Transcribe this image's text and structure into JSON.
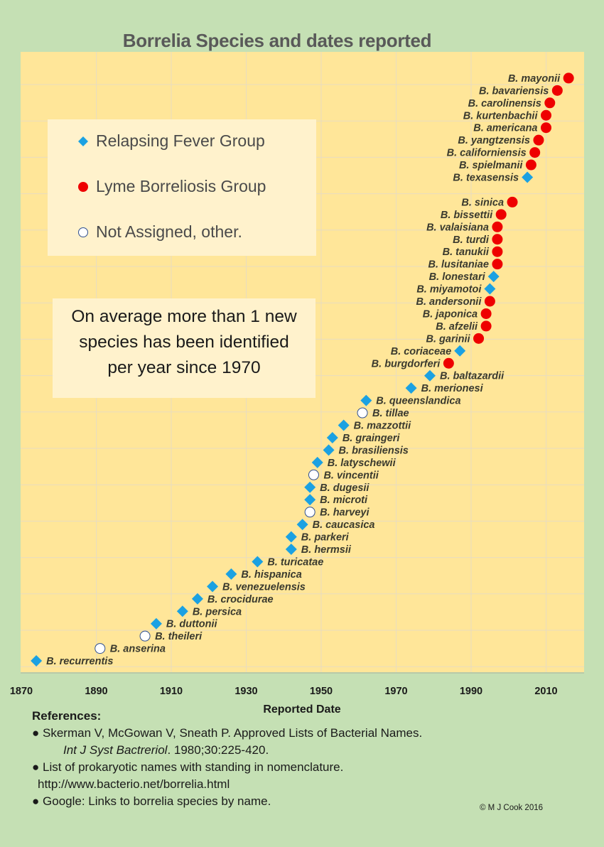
{
  "chart_data": {
    "type": "scatter",
    "title": "Borrelia Species and dates reported",
    "xlabel": "Reported Date",
    "ylabel": "",
    "xlim": [
      1870,
      2020
    ],
    "x_ticks": [
      1870,
      1890,
      1910,
      1930,
      1950,
      1970,
      1990,
      2010
    ],
    "grid": true,
    "colors": {
      "relapsing": "#1ba1e2",
      "lyme": "#ee0000",
      "other_fill": "#ffffff",
      "other_stroke": "#2f4f8f",
      "plot_bg": "#ffe699",
      "page_bg": "#c5e0b4",
      "box_bg": "#fff2cc"
    },
    "legend": {
      "placement": "top-left",
      "entries": [
        {
          "group": "relapsing",
          "label": "Relapsing Fever Group",
          "marker": "diamond"
        },
        {
          "group": "lyme",
          "label": "Lyme Borreliosis Group",
          "marker": "circle"
        },
        {
          "group": "other",
          "label": "Not Assigned, other.",
          "marker": "open-circle"
        }
      ]
    },
    "series": [
      {
        "rank": 1,
        "name": "B. recurrentis",
        "year": 1874,
        "group": "relapsing"
      },
      {
        "rank": 2,
        "name": "B. anserina",
        "year": 1891,
        "group": "other"
      },
      {
        "rank": 3,
        "name": "B. theileri",
        "year": 1903,
        "group": "other"
      },
      {
        "rank": 4,
        "name": "B. duttonii",
        "year": 1906,
        "group": "relapsing"
      },
      {
        "rank": 5,
        "name": "B. persica",
        "year": 1913,
        "group": "relapsing"
      },
      {
        "rank": 6,
        "name": "B. crocidurae",
        "year": 1917,
        "group": "relapsing"
      },
      {
        "rank": 7,
        "name": "B. venezuelensis",
        "year": 1921,
        "group": "relapsing"
      },
      {
        "rank": 8,
        "name": "B. hispanica",
        "year": 1926,
        "group": "relapsing"
      },
      {
        "rank": 9,
        "name": "B. turicatae",
        "year": 1933,
        "group": "relapsing"
      },
      {
        "rank": 10,
        "name": "B. hermsii",
        "year": 1942,
        "group": "relapsing"
      },
      {
        "rank": 11,
        "name": "B. parkeri",
        "year": 1942,
        "group": "relapsing"
      },
      {
        "rank": 12,
        "name": "B. caucasica",
        "year": 1945,
        "group": "relapsing"
      },
      {
        "rank": 13,
        "name": "B. harveyi",
        "year": 1947,
        "group": "other"
      },
      {
        "rank": 14,
        "name": "B. microti",
        "year": 1947,
        "group": "relapsing"
      },
      {
        "rank": 15,
        "name": "B. dugesii",
        "year": 1947,
        "group": "relapsing"
      },
      {
        "rank": 16,
        "name": "B. vincentii",
        "year": 1948,
        "group": "other"
      },
      {
        "rank": 17,
        "name": "B. latyschewii",
        "year": 1949,
        "group": "relapsing"
      },
      {
        "rank": 18,
        "name": "B. brasiliensis",
        "year": 1952,
        "group": "relapsing"
      },
      {
        "rank": 19,
        "name": "B. graingeri",
        "year": 1953,
        "group": "relapsing"
      },
      {
        "rank": 20,
        "name": "B. mazzottii",
        "year": 1956,
        "group": "relapsing"
      },
      {
        "rank": 21,
        "name": "B. tillae",
        "year": 1961,
        "group": "other"
      },
      {
        "rank": 22,
        "name": "B. queenslandica",
        "year": 1962,
        "group": "relapsing"
      },
      {
        "rank": 23,
        "name": "B. merionesi",
        "year": 1974,
        "group": "relapsing"
      },
      {
        "rank": 24,
        "name": "B. baltazardii",
        "year": 1979,
        "group": "relapsing"
      },
      {
        "rank": 25,
        "name": "B. burgdorferi",
        "year": 1984,
        "group": "lyme"
      },
      {
        "rank": 26,
        "name": "B. coriaceae",
        "year": 1987,
        "group": "relapsing"
      },
      {
        "rank": 27,
        "name": "B. garinii",
        "year": 1992,
        "group": "lyme"
      },
      {
        "rank": 28,
        "name": "B. afzelii",
        "year": 1994,
        "group": "lyme"
      },
      {
        "rank": 29,
        "name": "B. japonica",
        "year": 1994,
        "group": "lyme"
      },
      {
        "rank": 30,
        "name": "B. andersonii",
        "year": 1995,
        "group": "lyme"
      },
      {
        "rank": 31,
        "name": "B. miyamotoi",
        "year": 1995,
        "group": "relapsing"
      },
      {
        "rank": 32,
        "name": "B. lonestari",
        "year": 1996,
        "group": "relapsing"
      },
      {
        "rank": 33,
        "name": "B. lusitaniae",
        "year": 1997,
        "group": "lyme"
      },
      {
        "rank": 34,
        "name": "B. tanukii",
        "year": 1997,
        "group": "lyme"
      },
      {
        "rank": 35,
        "name": "B. turdi",
        "year": 1997,
        "group": "lyme"
      },
      {
        "rank": 36,
        "name": "B. valaisiana",
        "year": 1997,
        "group": "lyme"
      },
      {
        "rank": 37,
        "name": "B. bissettii",
        "year": 1998,
        "group": "lyme"
      },
      {
        "rank": 38,
        "name": "B. sinica",
        "year": 2001,
        "group": "lyme"
      },
      {
        "rank": 40,
        "name": "B. texasensis",
        "year": 2005,
        "group": "relapsing"
      },
      {
        "rank": 41,
        "name": "B. spielmanii",
        "year": 2006,
        "group": "lyme"
      },
      {
        "rank": 42,
        "name": "B. californiensis",
        "year": 2007,
        "group": "lyme"
      },
      {
        "rank": 43,
        "name": "B. yangtzensis",
        "year": 2008,
        "group": "lyme"
      },
      {
        "rank": 44,
        "name": "B. americana",
        "year": 2010,
        "group": "lyme"
      },
      {
        "rank": 45,
        "name": "B. kurtenbachii",
        "year": 2010,
        "group": "lyme"
      },
      {
        "rank": 46,
        "name": "B. carolinensis",
        "year": 2011,
        "group": "lyme"
      },
      {
        "rank": 47,
        "name": "B. bavariensis",
        "year": 2013,
        "group": "lyme"
      },
      {
        "rank": 48,
        "name": "B. mayonii",
        "year": 2016,
        "group": "lyme"
      }
    ],
    "ylim": [
      0,
      50
    ],
    "annotation": "On average more than 1 new species has been identified per year since 1970"
  },
  "annotation_lines": [
    "On average more than 1 new",
    "species has been identified",
    "per year since 1970"
  ],
  "references": {
    "title": "References:",
    "items": [
      {
        "bullet": "●",
        "text": "Skerman V, McGowan V, Sneath P. Approved Lists of Bacterial Names.",
        "journal": "Int J Syst Bactreriol",
        "citation": ". 1980;30:225-420."
      },
      {
        "bullet": "●",
        "text": "List of prokaryotic names with standing in nomenclature.",
        "url": "http://www.bacterio.net/borrelia.html"
      },
      {
        "bullet": "●",
        "text": "Google: Links to borrelia species by name."
      }
    ]
  },
  "copyright": "© M J Cook 2016"
}
